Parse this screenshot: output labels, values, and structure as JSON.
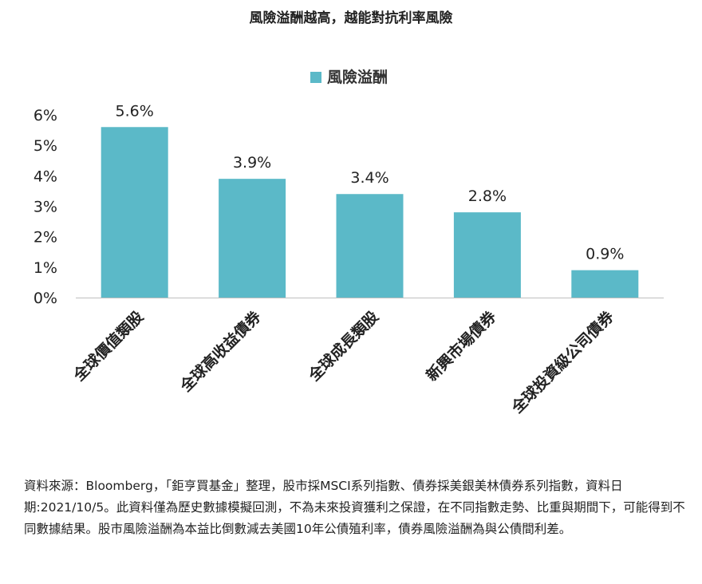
{
  "title": "風險溢酬越高，越能對抗利率風險",
  "chart_data": {
    "type": "bar",
    "title": "風險溢酬越高，越能對抗利率風險",
    "categories": [
      "全球價值類股",
      "全球高收益債券",
      "全球成長類股",
      "新興市場債券",
      "全球投資級公司債券"
    ],
    "series": [
      {
        "name": "風險溢酬",
        "values": [
          5.6,
          3.9,
          3.4,
          2.8,
          0.9
        ],
        "labels": [
          "5.6%",
          "3.9%",
          "3.4%",
          "2.8%",
          "0.9%"
        ]
      }
    ],
    "yticks": [
      "0%",
      "1%",
      "2%",
      "3%",
      "4%",
      "5%",
      "6%"
    ],
    "ylim": [
      0,
      6
    ],
    "unit": "%",
    "grid": false,
    "legend": "top-center",
    "bar_color": "#5bb9c8"
  },
  "footnote": "資料來源：Bloomberg，「鉅亨買基金」整理，股市採MSCI系列指數、債券採美銀美林債券系列指數，資料日期:2021/10/5。此資料僅為歷史數據模擬回測，不為未來投資獲利之保證，在不同指數走勢、比重與期間下，可能得到不同數據結果。股市風險溢酬為本益比倒數減去美國10年公債殖利率，債券風險溢酬為與公債間利差。"
}
